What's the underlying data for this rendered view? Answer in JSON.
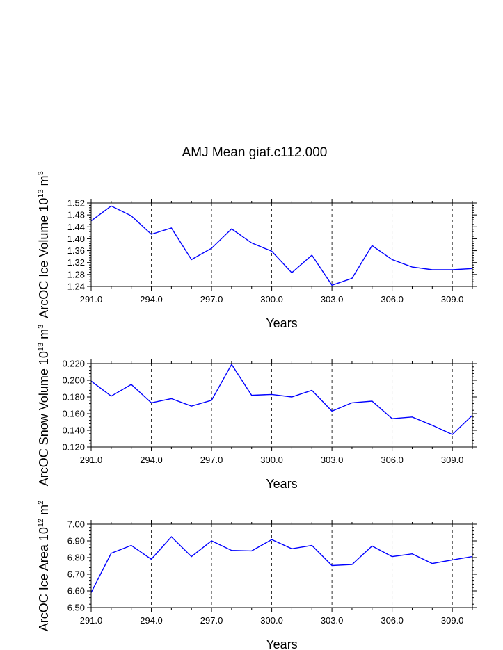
{
  "title": "AMJ Mean giaf.c112.000",
  "line_color": "#0000ff",
  "chart_data": [
    {
      "type": "line",
      "ylabel": "ArcOC Ice Volume 10",
      "ylabel_exp": "13",
      "ylabel_unit": "m",
      "ylabel_unit_exp": "3",
      "xlabel": "Years",
      "xlim": [
        291,
        310
      ],
      "ylim": [
        1.24,
        1.52
      ],
      "x_ticks": [
        "291.0",
        "294.0",
        "297.0",
        "300.0",
        "303.0",
        "306.0",
        "309.0"
      ],
      "y_ticks": [
        "1.24",
        "1.28",
        "1.32",
        "1.36",
        "1.40",
        "1.44",
        "1.48",
        "1.52"
      ],
      "x": [
        291,
        292,
        293,
        294,
        295,
        296,
        297,
        298,
        299,
        300,
        301,
        302,
        303,
        304,
        305,
        306,
        307,
        308,
        309,
        310
      ],
      "values": [
        1.46,
        1.51,
        1.477,
        1.415,
        1.436,
        1.33,
        1.368,
        1.433,
        1.386,
        1.358,
        1.286,
        1.345,
        1.244,
        1.267,
        1.377,
        1.33,
        1.305,
        1.296,
        1.296,
        1.3
      ]
    },
    {
      "type": "line",
      "ylabel": "ArcOC Snow Volume 10",
      "ylabel_exp": "13",
      "ylabel_unit": "m",
      "ylabel_unit_exp": "3",
      "xlabel": "Years",
      "xlim": [
        291,
        310
      ],
      "ylim": [
        0.12,
        0.22
      ],
      "x_ticks": [
        "291.0",
        "294.0",
        "297.0",
        "300.0",
        "303.0",
        "306.0",
        "309.0"
      ],
      "y_ticks": [
        "0.120",
        "0.140",
        "0.160",
        "0.180",
        "0.200",
        "0.220"
      ],
      "x": [
        291,
        292,
        293,
        294,
        295,
        296,
        297,
        298,
        299,
        300,
        301,
        302,
        303,
        304,
        305,
        306,
        307,
        308,
        309,
        310
      ],
      "values": [
        0.199,
        0.181,
        0.195,
        0.173,
        0.178,
        0.169,
        0.176,
        0.219,
        0.182,
        0.183,
        0.18,
        0.188,
        0.163,
        0.173,
        0.175,
        0.154,
        0.156,
        0.146,
        0.135,
        0.158
      ]
    },
    {
      "type": "line",
      "ylabel": "ArcOC Ice Area 10",
      "ylabel_exp": "12",
      "ylabel_unit": "m",
      "ylabel_unit_exp": "2",
      "xlabel": "Years",
      "xlim": [
        291,
        310
      ],
      "ylim": [
        6.5,
        7.0
      ],
      "x_ticks": [
        "291.0",
        "294.0",
        "297.0",
        "300.0",
        "303.0",
        "306.0",
        "309.0"
      ],
      "y_ticks": [
        "6.50",
        "6.60",
        "6.70",
        "6.80",
        "6.90",
        "7.00"
      ],
      "x": [
        291,
        292,
        293,
        294,
        295,
        296,
        297,
        298,
        299,
        300,
        301,
        302,
        303,
        304,
        305,
        306,
        307,
        308,
        309,
        310
      ],
      "values": [
        6.59,
        6.826,
        6.873,
        6.79,
        6.924,
        6.806,
        6.9,
        6.843,
        6.84,
        6.908,
        6.853,
        6.873,
        6.752,
        6.758,
        6.869,
        6.806,
        6.822,
        6.764,
        6.786,
        6.806
      ]
    }
  ]
}
